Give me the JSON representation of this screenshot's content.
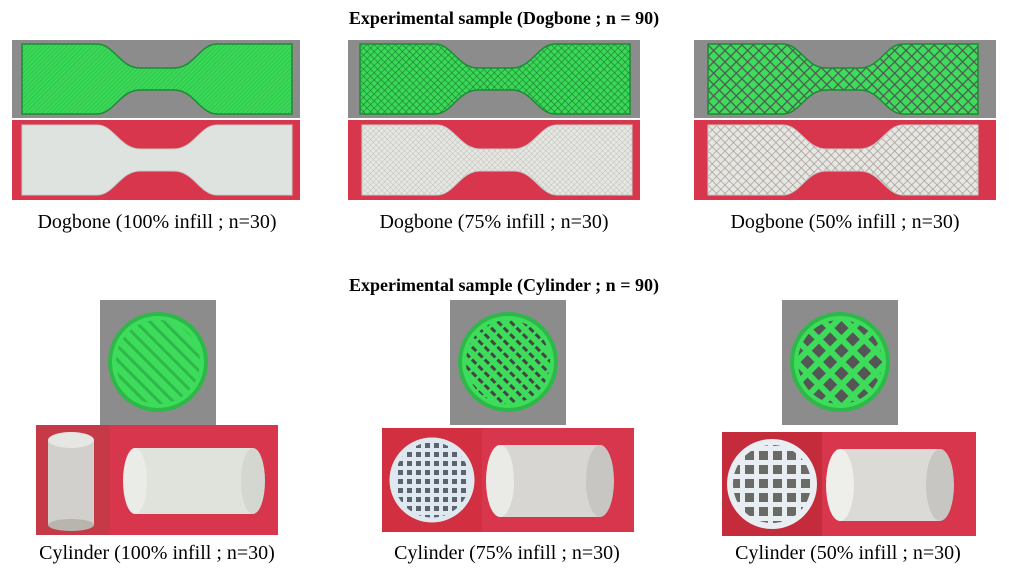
{
  "figure": {
    "sections": [
      {
        "title": "Experimental sample (Dogbone ; n = 90)",
        "captions": [
          "Dogbone (100% infill ; n=30)",
          "Dogbone (75% infill ; n=30)",
          "Dogbone (50% infill ; n=30)"
        ]
      },
      {
        "title": "Experimental sample (Cylinder ; n = 90)",
        "captions": [
          "Cylinder (100% infill ; n=30)",
          "Cylinder (75% infill ; n=30)",
          "Cylinder (50% infill ; n=30)"
        ]
      }
    ]
  }
}
